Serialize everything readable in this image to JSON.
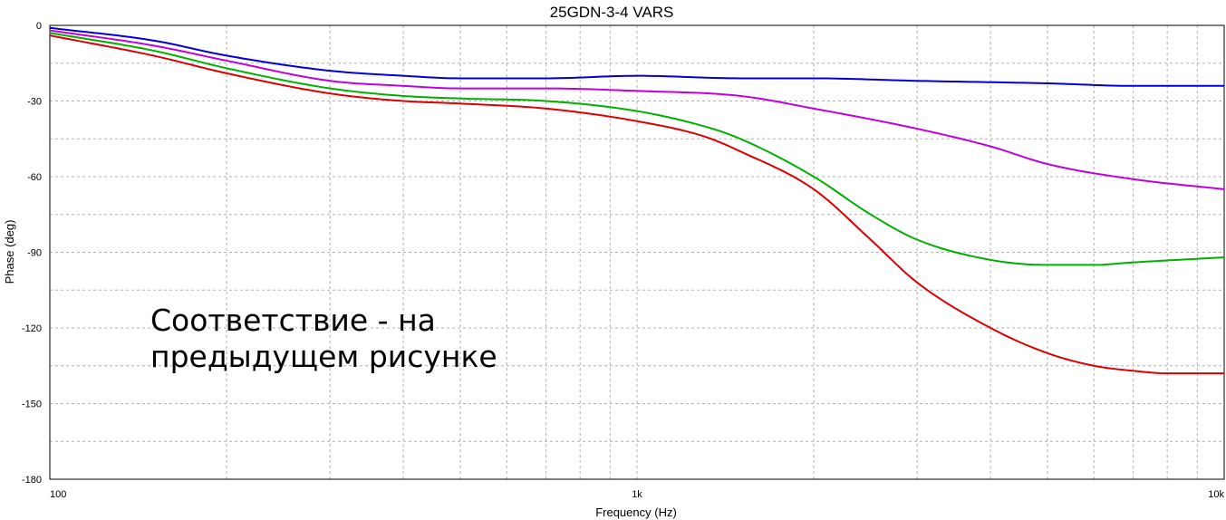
{
  "chart_data": {
    "type": "line",
    "title": "25GDN-3-4 VARS",
    "xlabel": "Frequency (Hz)",
    "ylabel": "Phase (deg)",
    "x_scale": "log",
    "xlim": [
      100,
      10000
    ],
    "ylim": [
      -180,
      0
    ],
    "grid": true,
    "x_tick_labels": [
      {
        "value": 100,
        "label": "100"
      },
      {
        "value": 1000,
        "label": "1k"
      },
      {
        "value": 10000,
        "label": "10k"
      }
    ],
    "y_ticks": [
      0,
      -30,
      -60,
      -90,
      -120,
      -150,
      -180
    ],
    "annotation": {
      "line1": "Соответствие - на",
      "line2": "предыдущем рисунке"
    },
    "series": [
      {
        "color": "#0000dd",
        "points": [
          [
            100,
            -1
          ],
          [
            150,
            -6
          ],
          [
            200,
            -12
          ],
          [
            300,
            -18
          ],
          [
            400,
            -20
          ],
          [
            500,
            -21
          ],
          [
            700,
            -21
          ],
          [
            1000,
            -20
          ],
          [
            1500,
            -21
          ],
          [
            2000,
            -21
          ],
          [
            3000,
            -22
          ],
          [
            5000,
            -23
          ],
          [
            7000,
            -24
          ],
          [
            10000,
            -24
          ]
        ]
      },
      {
        "color": "#c000e0",
        "points": [
          [
            100,
            -2
          ],
          [
            150,
            -8
          ],
          [
            200,
            -14
          ],
          [
            300,
            -22
          ],
          [
            400,
            -24
          ],
          [
            500,
            -25
          ],
          [
            700,
            -25
          ],
          [
            1000,
            -26
          ],
          [
            1500,
            -28
          ],
          [
            2000,
            -33
          ],
          [
            3000,
            -41
          ],
          [
            4000,
            -48
          ],
          [
            5000,
            -55
          ],
          [
            7000,
            -61
          ],
          [
            10000,
            -65
          ]
        ]
      },
      {
        "color": "#00b000",
        "points": [
          [
            100,
            -3
          ],
          [
            150,
            -10
          ],
          [
            200,
            -17
          ],
          [
            300,
            -25
          ],
          [
            400,
            -28
          ],
          [
            500,
            -29
          ],
          [
            700,
            -30
          ],
          [
            1000,
            -34
          ],
          [
            1300,
            -40
          ],
          [
            1500,
            -45
          ],
          [
            2000,
            -60
          ],
          [
            2500,
            -75
          ],
          [
            3000,
            -85
          ],
          [
            4000,
            -93
          ],
          [
            5000,
            -95
          ],
          [
            6000,
            -95
          ],
          [
            7000,
            -94
          ],
          [
            10000,
            -92
          ]
        ]
      },
      {
        "color": "#dd0000",
        "points": [
          [
            100,
            -4
          ],
          [
            150,
            -12
          ],
          [
            200,
            -19
          ],
          [
            300,
            -27
          ],
          [
            400,
            -30
          ],
          [
            500,
            -31
          ],
          [
            700,
            -33
          ],
          [
            1000,
            -38
          ],
          [
            1300,
            -44
          ],
          [
            1500,
            -50
          ],
          [
            2000,
            -65
          ],
          [
            2500,
            -85
          ],
          [
            3000,
            -102
          ],
          [
            4000,
            -120
          ],
          [
            5000,
            -130
          ],
          [
            6000,
            -135
          ],
          [
            7000,
            -137
          ],
          [
            8000,
            -138
          ],
          [
            10000,
            -138
          ]
        ]
      }
    ]
  }
}
